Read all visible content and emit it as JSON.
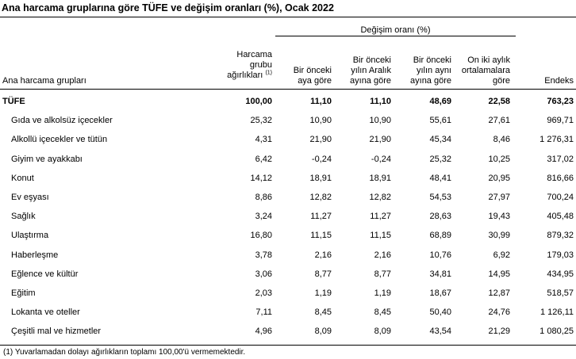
{
  "title": "Ana harcama gruplarına göre TÜFE ve değişim oranları (%), Ocak 2022",
  "group_header": "Değişim oranı (%)",
  "headers": {
    "group": "Ana harcama grupları",
    "weight_line1": "Harcama",
    "weight_line2": "grubu",
    "weight_line3": "ağırlıkları",
    "weight_sup": "(1)",
    "mom_line1": "Bir önceki",
    "mom_line2": "aya göre",
    "ytd_line1": "Bir önceki",
    "ytd_line2": "yılın Aralık",
    "ytd_line3": "ayına göre",
    "yoy_line1": "Bir önceki",
    "yoy_line2": "yılın aynı",
    "yoy_line3": "ayına göre",
    "ma12_line1": "On iki aylık",
    "ma12_line2": "ortalamalara",
    "ma12_line3": "göre",
    "index": "Endeks"
  },
  "rows": [
    {
      "name": "TÜFE",
      "weight": "100,00",
      "mom": "11,10",
      "ytd": "11,10",
      "yoy": "48,69",
      "ma12": "22,58",
      "index": "763,23"
    },
    {
      "name": "Gıda ve alkolsüz içecekler",
      "weight": "25,32",
      "mom": "10,90",
      "ytd": "10,90",
      "yoy": "55,61",
      "ma12": "27,61",
      "index": "969,71"
    },
    {
      "name": "Alkollü içecekler ve tütün",
      "weight": "4,31",
      "mom": "21,90",
      "ytd": "21,90",
      "yoy": "45,34",
      "ma12": "8,46",
      "index": "1 276,31"
    },
    {
      "name": "Giyim ve ayakkabı",
      "weight": "6,42",
      "mom": "-0,24",
      "ytd": "-0,24",
      "yoy": "25,32",
      "ma12": "10,25",
      "index": "317,02"
    },
    {
      "name": "Konut",
      "weight": "14,12",
      "mom": "18,91",
      "ytd": "18,91",
      "yoy": "48,41",
      "ma12": "20,95",
      "index": "816,66"
    },
    {
      "name": "Ev eşyası",
      "weight": "8,86",
      "mom": "12,82",
      "ytd": "12,82",
      "yoy": "54,53",
      "ma12": "27,97",
      "index": "700,24"
    },
    {
      "name": "Sağlık",
      "weight": "3,24",
      "mom": "11,27",
      "ytd": "11,27",
      "yoy": "28,63",
      "ma12": "19,43",
      "index": "405,48"
    },
    {
      "name": "Ulaştırma",
      "weight": "16,80",
      "mom": "11,15",
      "ytd": "11,15",
      "yoy": "68,89",
      "ma12": "30,99",
      "index": "879,32"
    },
    {
      "name": "Haberleşme",
      "weight": "3,78",
      "mom": "2,16",
      "ytd": "2,16",
      "yoy": "10,76",
      "ma12": "6,92",
      "index": "179,03"
    },
    {
      "name": "Eğlence ve kültür",
      "weight": "3,06",
      "mom": "8,77",
      "ytd": "8,77",
      "yoy": "34,81",
      "ma12": "14,95",
      "index": "434,95"
    },
    {
      "name": "Eğitim",
      "weight": "2,03",
      "mom": "1,19",
      "ytd": "1,19",
      "yoy": "18,67",
      "ma12": "12,87",
      "index": "518,57"
    },
    {
      "name": "Lokanta ve oteller",
      "weight": "7,11",
      "mom": "8,45",
      "ytd": "8,45",
      "yoy": "50,40",
      "ma12": "24,76",
      "index": "1 126,11"
    },
    {
      "name": "Çeşitli mal ve hizmetler",
      "weight": "4,96",
      "mom": "8,09",
      "ytd": "8,09",
      "yoy": "43,54",
      "ma12": "21,29",
      "index": "1 080,25"
    }
  ],
  "footnote": "(1) Yuvarlamadan dolayı ağırlıkların toplamı 100,00'ü vermemektedir."
}
